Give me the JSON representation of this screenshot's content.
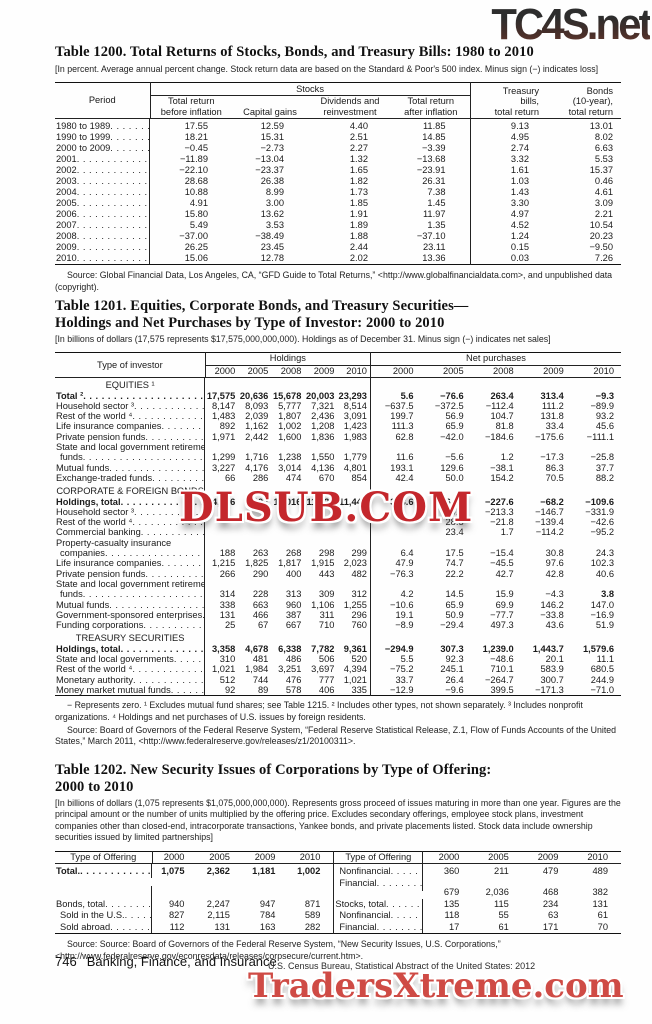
{
  "watermarks": {
    "top": "TC4S.net",
    "middle": "DLSUB.COM",
    "bottom": "TradersXtreme.com",
    "red_color": "#c4272c"
  },
  "table1200": {
    "title": "Table 1200. Total Returns of Stocks, Bonds, and Treasury Bills: 1980 to 2010",
    "note": "[In percent. Average annual percent change. Stock return data are based on the Standard & Poor's 500 index. Minus sign (−) indicates loss]",
    "header": {
      "period": "Period",
      "stocks_group": "Stocks",
      "c1": "Total return\nbefore inflation",
      "c2": "Capital gains",
      "c3": "Dividends and\nreinvestment",
      "c4": "Total return\nafter inflation",
      "c5": "Treasury\nbills,\ntotal return",
      "c6": "Bonds\n(10-year),\ntotal return"
    },
    "rows": [
      {
        "label": "1980 to 1989",
        "values": [
          "17.55",
          "12.59",
          "4.40",
          "11.85",
          "9.13",
          "13.01"
        ]
      },
      {
        "label": "1990 to 1999",
        "values": [
          "18.21",
          "15.31",
          "2.51",
          "14.85",
          "4.95",
          "8.02"
        ]
      },
      {
        "label": "2000 to 2009",
        "values": [
          "−0.45",
          "−2.73",
          "2.27",
          "−3.39",
          "2.74",
          "6.63"
        ]
      },
      {
        "label": "2001",
        "values": [
          "−11.89",
          "−13.04",
          "1.32",
          "−13.68",
          "3.32",
          "5.53"
        ]
      },
      {
        "label": "2002",
        "values": [
          "−22.10",
          "−23.37",
          "1.65",
          "−23.91",
          "1.61",
          "15.37"
        ]
      },
      {
        "label": "2003",
        "values": [
          "28.68",
          "26.38",
          "1.82",
          "26.31",
          "1.03",
          "0.46"
        ]
      },
      {
        "label": "2004",
        "values": [
          "10.88",
          "8.99",
          "1.73",
          "7.38",
          "1.43",
          "4.61"
        ]
      },
      {
        "label": "2005",
        "values": [
          "4.91",
          "3.00",
          "1.85",
          "1.45",
          "3.30",
          "3.09"
        ]
      },
      {
        "label": "2006",
        "values": [
          "15.80",
          "13.62",
          "1.91",
          "11.97",
          "4.97",
          "2.21"
        ]
      },
      {
        "label": "2007",
        "values": [
          "5.49",
          "3.53",
          "1.89",
          "1.35",
          "4.52",
          "10.54"
        ]
      },
      {
        "label": "2008",
        "values": [
          "−37.00",
          "−38.49",
          "1.88",
          "−37.10",
          "1.24",
          "20.23"
        ]
      },
      {
        "label": "2009",
        "values": [
          "26.25",
          "23.45",
          "2.44",
          "23.11",
          "0.15",
          "−9.50"
        ]
      },
      {
        "label": "2010",
        "values": [
          "15.06",
          "12.78",
          "2.02",
          "13.36",
          "0.03",
          "7.26"
        ]
      }
    ],
    "source": "Source: Global Financial Data, Los Angeles, CA, “GFD Guide to Total Returns,” <http://www.globalfinancialdata.com>, and unpublished data (copyright)."
  },
  "table1201": {
    "title": "Table 1201. Equities, Corporate Bonds, and Treasury Securities—\nHoldings and Net Purchases by Type of Investor: 2000 to 2010",
    "note": "[In billions of dollars (17,575 represents $17,575,000,000,000). Holdings as of December 31. Minus sign (−) indicates net sales]",
    "header": {
      "stub": "Type of investor",
      "holdings": "Holdings",
      "net": "Net purchases",
      "years": [
        "2000",
        "2005",
        "2008",
        "2009",
        "2010"
      ]
    },
    "rows": [
      {
        "section": true,
        "label": "EQUITIES ¹"
      },
      {
        "label": "Total ²",
        "bold": true,
        "values": [
          "17,575",
          "20,636",
          "15,678",
          "20,003",
          "23,293",
          "5.6",
          "−76.6",
          "263.4",
          "313.4",
          "−9.3"
        ]
      },
      {
        "label": "Household sector ³",
        "values": [
          "8,147",
          "8,093",
          "5,777",
          "7,321",
          "8,514",
          "−637.5",
          "−372.5",
          "−112.4",
          "111.2",
          "−89.9"
        ]
      },
      {
        "label": "Rest of the world ⁴",
        "values": [
          "1,483",
          "2,039",
          "1,807",
          "2,436",
          "3,091",
          "199.7",
          "56.9",
          "104.7",
          "131.8",
          "93.2"
        ]
      },
      {
        "label": "Life insurance companies",
        "values": [
          "892",
          "1,162",
          "1,002",
          "1,208",
          "1,423",
          "111.3",
          "65.9",
          "81.8",
          "33.4",
          "45.6"
        ]
      },
      {
        "label": "Private pension funds",
        "values": [
          "1,971",
          "2,442",
          "1,600",
          "1,836",
          "1,983",
          "62.8",
          "−42.0",
          "−184.6",
          "−175.6",
          "−111.1"
        ]
      },
      {
        "label": "State and local government retirement",
        "wrap": true
      },
      {
        "label": "funds",
        "indent": true,
        "values": [
          "1,299",
          "1,716",
          "1,238",
          "1,550",
          "1,779",
          "11.6",
          "−5.6",
          "1.2",
          "−17.3",
          "−25.8"
        ]
      },
      {
        "label": "Mutual funds",
        "values": [
          "3,227",
          "4,176",
          "3,014",
          "4,136",
          "4,801",
          "193.1",
          "129.6",
          "−38.1",
          "86.3",
          "37.7"
        ]
      },
      {
        "label": "Exchange-traded funds",
        "values": [
          "66",
          "286",
          "474",
          "670",
          "854",
          "42.4",
          "50.0",
          "154.2",
          "70.5",
          "88.2"
        ]
      },
      {
        "section": true,
        "label": "CORPORATE & FOREIGN BONDS"
      },
      {
        "label": "Holdings, total",
        "bold": true,
        "values": [
          "4,926",
          "9,604",
          "11,016",
          "11,424",
          "11,443",
          "358.6",
          "864.2",
          "−227.6",
          "−68.2",
          "−109.6"
        ]
      },
      {
        "label": "Household sector ³",
        "values": [
          "",
          "",
          "",
          "",
          "",
          "",
          "19.6",
          "−213.3",
          "−146.7",
          "−331.9"
        ]
      },
      {
        "label": "Rest of the world ⁴",
        "values": [
          "",
          "",
          "",
          "",
          "",
          "",
          "28.5",
          "−21.8",
          "−139.4",
          "−42.6"
        ]
      },
      {
        "label": "Commercial banking",
        "values": [
          "",
          "",
          "",
          "",
          "",
          "",
          "23.4",
          "1.7",
          "−114.2",
          "−95.2"
        ]
      },
      {
        "label": "Property-casualty insurance",
        "wrap": true
      },
      {
        "label": "companies",
        "indent": true,
        "values": [
          "188",
          "263",
          "268",
          "298",
          "299",
          "6.4",
          "17.5",
          "−15.4",
          "30.8",
          "24.3"
        ]
      },
      {
        "label": "Life insurance companies",
        "values": [
          "1,215",
          "1,825",
          "1,817",
          "1,915",
          "2,023",
          "47.9",
          "74.7",
          "−45.5",
          "97.6",
          "102.3"
        ]
      },
      {
        "label": "Private pension funds",
        "values": [
          "266",
          "290",
          "400",
          "443",
          "482",
          "−76.3",
          "22.2",
          "42.7",
          "42.8",
          "40.6"
        ]
      },
      {
        "label": "State and local government retirement",
        "wrap": true
      },
      {
        "label": "funds",
        "indent": true,
        "boldCols": [
          9
        ],
        "values": [
          "314",
          "228",
          "313",
          "309",
          "312",
          "4.2",
          "14.5",
          "15.9",
          "−4.3",
          "3.8"
        ]
      },
      {
        "label": "Mutual funds",
        "values": [
          "338",
          "663",
          "960",
          "1,106",
          "1,255",
          "−10.6",
          "65.9",
          "69.9",
          "146.2",
          "147.0"
        ]
      },
      {
        "label": "Government-sponsored enterprises",
        "values": [
          "131",
          "466",
          "387",
          "311",
          "296",
          "19.1",
          "50.9",
          "−77.7",
          "−33.8",
          "−16.9"
        ]
      },
      {
        "label": "Funding corporations",
        "values": [
          "25",
          "67",
          "667",
          "710",
          "760",
          "−8.9",
          "−29.4",
          "497.3",
          "43.6",
          "51.9"
        ]
      },
      {
        "section": true,
        "label": "TREASURY SECURITIES"
      },
      {
        "label": "Holdings, total",
        "bold": true,
        "values": [
          "3,358",
          "4,678",
          "6,338",
          "7,782",
          "9,361",
          "−294.9",
          "307.3",
          "1,239.0",
          "1,443.7",
          "1,579.6"
        ]
      },
      {
        "label": "State and local governments",
        "values": [
          "310",
          "481",
          "486",
          "506",
          "520",
          "5.5",
          "92.3",
          "−48.6",
          "20.1",
          "11.1"
        ]
      },
      {
        "label": "Rest of the world ⁴",
        "values": [
          "1,021",
          "1,984",
          "3,251",
          "3,697",
          "4,394",
          "−75.2",
          "245.1",
          "710.1",
          "583.9",
          "680.5"
        ]
      },
      {
        "label": "Monetary authority",
        "values": [
          "512",
          "744",
          "476",
          "777",
          "1,021",
          "33.7",
          "26.4",
          "−264.7",
          "300.7",
          "244.9"
        ]
      },
      {
        "label": "Money market mutual funds",
        "values": [
          "92",
          "89",
          "578",
          "406",
          "335",
          "−12.9",
          "−9.6",
          "399.5",
          "−171.3",
          "−71.0"
        ]
      }
    ],
    "footnotes": "− Represents zero. ¹ Excludes mutual fund shares; see Table 1215. ² Includes other types, not shown separately. ³ Includes nonprofit organizations. ⁴ Holdings and net purchases of U.S. issues by foreign residents.",
    "source": "Source: Board of Governors of the Federal Reserve System, “Federal Reserve Statistical Release, Z.1, Flow of Funds Accounts of the United States,” March 2011, <http://www.federalreserve.gov/releases/z1/20100311>."
  },
  "table1202": {
    "title": "Table 1202. New Security Issues of Corporations by Type of Offering:\n2000 to 2010",
    "note": "[In billions of dollars (1,075 represents $1,075,000,000,000). Represents gross proceed of issues maturing in more than one year. Figures are the principal amount or the number of units multiplied by the offering price. Excludes secondary offerings, employee stock plans, investment companies other than closed-end, intracorporate transactions, Yankee bonds, and private placements listed. Stock data include ownership securities issued by limited partnerships]",
    "header": {
      "stub": "Type of Offering",
      "years": [
        "2000",
        "2005",
        "2009",
        "2010"
      ]
    },
    "rows": [
      {
        "left": {
          "label": "Total.",
          "bold": true,
          "values": [
            "1,075",
            "2,362",
            "1,181",
            "1,002"
          ]
        },
        "right": {
          "label": "Nonfinancial",
          "indent": true,
          "values": [
            "360",
            "211",
            "479",
            "489"
          ]
        }
      },
      {
        "left": {
          "label": "",
          "values": [
            "",
            "",
            "",
            ""
          ]
        },
        "right": {
          "label": "Financial",
          "indent": true,
          "values": [
            "679",
            "2,036",
            "468",
            "382"
          ]
        }
      },
      {
        "left": {
          "label": "Bonds, total",
          "values": [
            "940",
            "2,247",
            "947",
            "871"
          ]
        },
        "right": {
          "label": "Stocks, total",
          "values": [
            "135",
            "115",
            "234",
            "131"
          ]
        }
      },
      {
        "left": {
          "label": "Sold in the U.S.",
          "indent": true,
          "values": [
            "827",
            "2,115",
            "784",
            "589"
          ]
        },
        "right": {
          "label": "Nonfinancial",
          "indent": true,
          "values": [
            "118",
            "55",
            "63",
            "61"
          ]
        }
      },
      {
        "left": {
          "label": "Sold abroad",
          "indent": true,
          "values": [
            "112",
            "131",
            "163",
            "282"
          ]
        },
        "right": {
          "label": "Financial",
          "indent": true,
          "values": [
            "17",
            "61",
            "171",
            "70"
          ]
        }
      }
    ],
    "source": "Source: Source: Board of Governors of the Federal Reserve System, “New Security Issues, U.S. Corporations,” <http://www.federalreserve.gov/econresdata/releases/corpsecure/current.htm>."
  },
  "footer": {
    "page": "746",
    "section": "Banking, Finance, and Insurance",
    "census": "U.S. Census Bureau, Statistical Abstract of the United States: 2012"
  }
}
